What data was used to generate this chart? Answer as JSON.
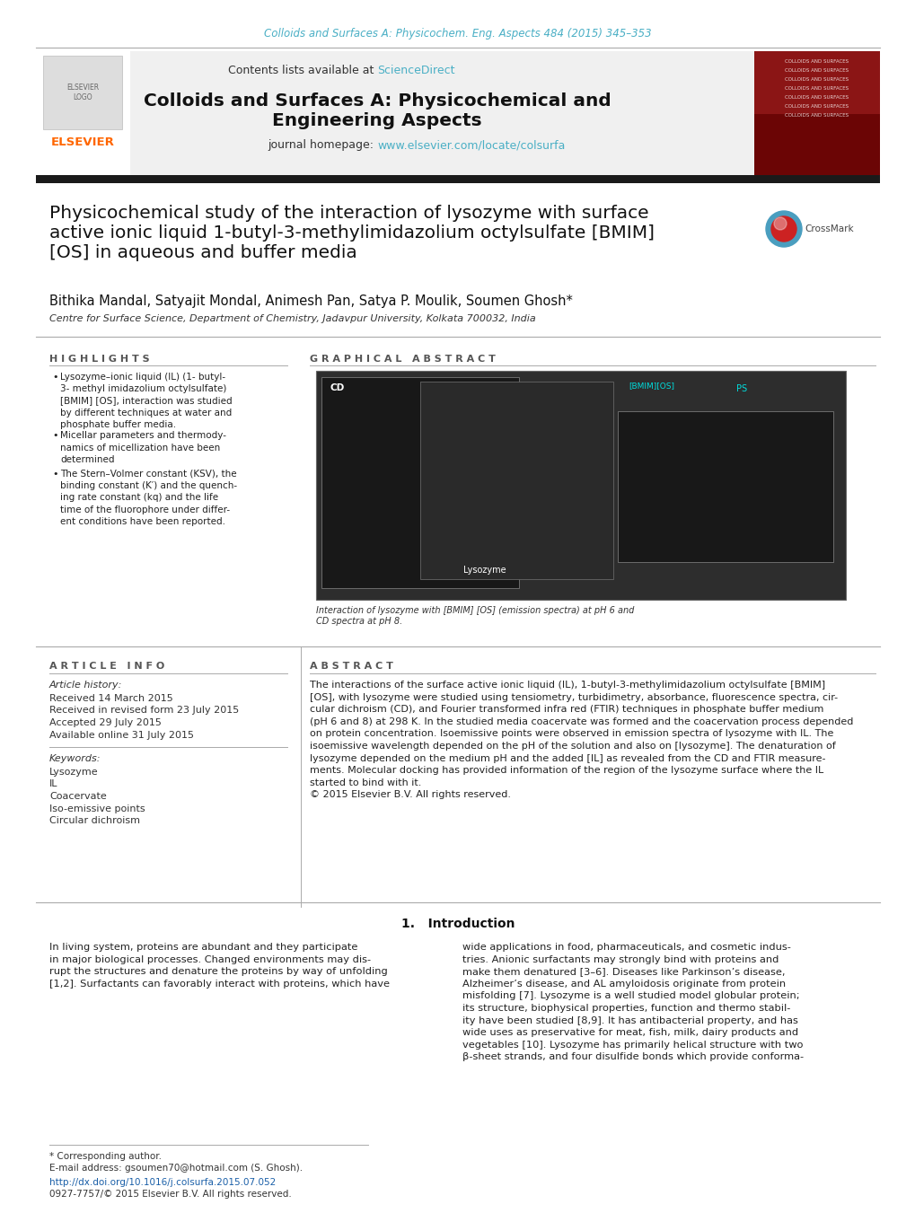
{
  "bg_color": "#ffffff",
  "top_journal_ref": "Colloids and Surfaces A: Physicochem. Eng. Aspects 484 (2015) 345–353",
  "top_journal_ref_color": "#4AAFC5",
  "header_bg": "#f0f0f0",
  "header_text": "Contents lists available at ",
  "header_sciencedirect": "ScienceDirect",
  "header_sciencedirect_color": "#4AAFC5",
  "journal_title_line1": "Colloids and Surfaces A: Physicochemical and",
  "journal_title_line2": "Engineering Aspects",
  "journal_homepage_text": "journal homepage: ",
  "journal_url": "www.elsevier.com/locate/colsurfa",
  "journal_url_color": "#4AAFC5",
  "thick_bar_color": "#1a1a1a",
  "article_title": "Physicochemical study of the interaction of lysozyme with surface\nactive ionic liquid 1-butyl-3-methylimidazolium octylsulfate [BMIM]\n[OS] in aqueous and buffer media",
  "authors": "Bithika Mandal, Satyajit Mondal, Animesh Pan, Satya P. Moulik, Soumen Ghosh",
  "affiliation": "Centre for Surface Science, Department of Chemistry, Jadavpur University, Kolkata 700032, India",
  "highlights_title": "H I G H L I G H T S",
  "highlights": [
    "Lysozyme–ionic liquid (IL) (1- butyl-\n3- methyl imidazolium octylsulfate)\n[BMIM] [OS], interaction was studied\nby different techniques at water and\nphosphate buffer media.",
    "Micellar parameters and thermody-\nnamics of micellization have been\ndetermined",
    "The Stern–Volmer constant (KSV), the\nbinding constant (K′) and the quench-\ning rate constant (kq) and the life\ntime of the fluorophore under differ-\nent conditions have been reported."
  ],
  "graphical_abstract_title": "G R A P H I C A L   A B S T R A C T",
  "graphical_abstract_caption": "Interaction of lysozyme with [BMIM] [OS] (emission spectra) at pH 6 and\nCD spectra at pH 8.",
  "article_info_title": "A R T I C L E   I N F O",
  "article_history_label": "Article history:",
  "article_history": [
    "Received 14 March 2015",
    "Received in revised form 23 July 2015",
    "Accepted 29 July 2015",
    "Available online 31 July 2015"
  ],
  "keywords_label": "Keywords:",
  "keywords": [
    "Lysozyme",
    "IL",
    "Coacervate",
    "Iso-emissive points",
    "Circular dichroism"
  ],
  "abstract_title": "A B S T R A C T",
  "abstract_text": "The interactions of the surface active ionic liquid (IL), 1-butyl-3-methylimidazolium octylsulfate [BMIM]\n[OS], with lysozyme were studied using tensiometry, turbidimetry, absorbance, fluorescence spectra, cir-\ncular dichroism (CD), and Fourier transformed infra red (FTIR) techniques in phosphate buffer medium\n(pH 6 and 8) at 298 K. In the studied media coacervate was formed and the coacervation process depended\non protein concentration. Isoemissive points were observed in emission spectra of lysozyme with IL. The\nisoemissive wavelength depended on the pH of the solution and also on [lysozyme]. The denaturation of\nlysozyme depended on the medium pH and the added [IL] as revealed from the CD and FTIR measure-\nments. Molecular docking has provided information of the region of the lysozyme surface where the IL\nstarted to bind with it.\n© 2015 Elsevier B.V. All rights reserved.",
  "intro_title": "1.   Introduction",
  "intro_col1": "In living system, proteins are abundant and they participate\nin major biological processes. Changed environments may dis-\nrupt the structures and denature the proteins by way of unfolding\n[1,2]. Surfactants can favorably interact with proteins, which have",
  "intro_col2": "wide applications in food, pharmaceuticals, and cosmetic indus-\ntries. Anionic surfactants may strongly bind with proteins and\nmake them denatured [3–6]. Diseases like Parkinson’s disease,\nAlzheimer’s disease, and AL amyloidosis originate from protein\nmisfolding [7]. Lysozyme is a well studied model globular protein;\nits structure, biophysical properties, function and thermo stabil-\nity have been studied [8,9]. It has antibacterial property, and has\nwide uses as preservative for meat, fish, milk, dairy products and\nvegetables [10]. Lysozyme has primarily helical structure with two\nβ-sheet strands, and four disulfide bonds which provide conforma-",
  "footer_text1": "* Corresponding author.",
  "footer_text2": "E-mail address: gsoumen70@hotmail.com (S. Ghosh).",
  "footer_text3": "http://dx.doi.org/10.1016/j.colsurfa.2015.07.052",
  "footer_text4": "0927-7757/© 2015 Elsevier B.V. All rights reserved.",
  "elsevier_color": "#FF6600",
  "crossmark_outer": "#4A9EBF",
  "crossmark_inner": "#CC2222"
}
